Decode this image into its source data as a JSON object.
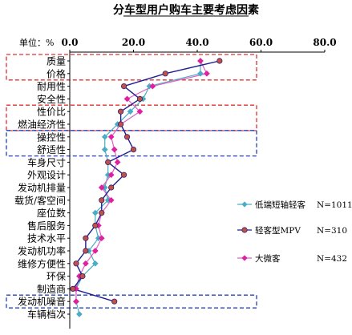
{
  "chart_data": {
    "type": "line",
    "title": "分车型用户购车主要考虑因素",
    "unit_label": "单位：%",
    "x_ticks": [
      "0.0",
      "20.0",
      "40.0",
      "60.0",
      "80.0"
    ],
    "xlim": [
      0,
      80
    ],
    "categories": [
      "质量",
      "价格",
      "耐用性",
      "安全性",
      "性价比",
      "燃油经济性",
      "操控性",
      "舒适性",
      "车身尺寸",
      "外观设计",
      "发动机排量",
      "载货/客空间",
      "座位数",
      "售后服务",
      "技术水平",
      "发动机功率",
      "维修方便性",
      "环保",
      "制造商",
      "发动机噪音",
      "车辆档次"
    ],
    "series": [
      {
        "name": "低端短轴轻客",
        "n_label": "N=1011",
        "color": "#4bacc6",
        "marker": "diamond",
        "values": [
          41,
          41,
          25,
          23,
          19,
          15,
          11,
          11,
          12,
          12,
          11,
          12,
          8,
          8,
          9,
          6,
          8,
          4,
          2,
          2,
          3
        ]
      },
      {
        "name": "轻客型MPV",
        "n_label": "N=310",
        "color": "#1f1f8f",
        "marker_fill": "#c0504d",
        "marker": "circle",
        "values": [
          47,
          30,
          17,
          22,
          16,
          16,
          18,
          20,
          12,
          17,
          13,
          10,
          10,
          8,
          5,
          5,
          2,
          4,
          1,
          14,
          null
        ]
      },
      {
        "name": "大微客",
        "n_label": "N=432",
        "color": "#e060c0",
        "marker_fill": "#e020a0",
        "marker": "diamond",
        "values": [
          41,
          43,
          26,
          18,
          22,
          16,
          13,
          14,
          15,
          13,
          10,
          13,
          10,
          9,
          10,
          8,
          5,
          3,
          2,
          2,
          null
        ]
      }
    ],
    "highlight_groups": [
      {
        "color": "#e03030",
        "categories": [
          "质量",
          "价格"
        ]
      },
      {
        "color": "#e03030",
        "categories": [
          "性价比",
          "燃油经济性"
        ]
      },
      {
        "color": "#2040c0",
        "categories": [
          "操控性",
          "舒适性"
        ]
      },
      {
        "color": "#2040c0",
        "categories": [
          "发动机噪音"
        ]
      }
    ],
    "legend_position": "right",
    "grid": false
  }
}
